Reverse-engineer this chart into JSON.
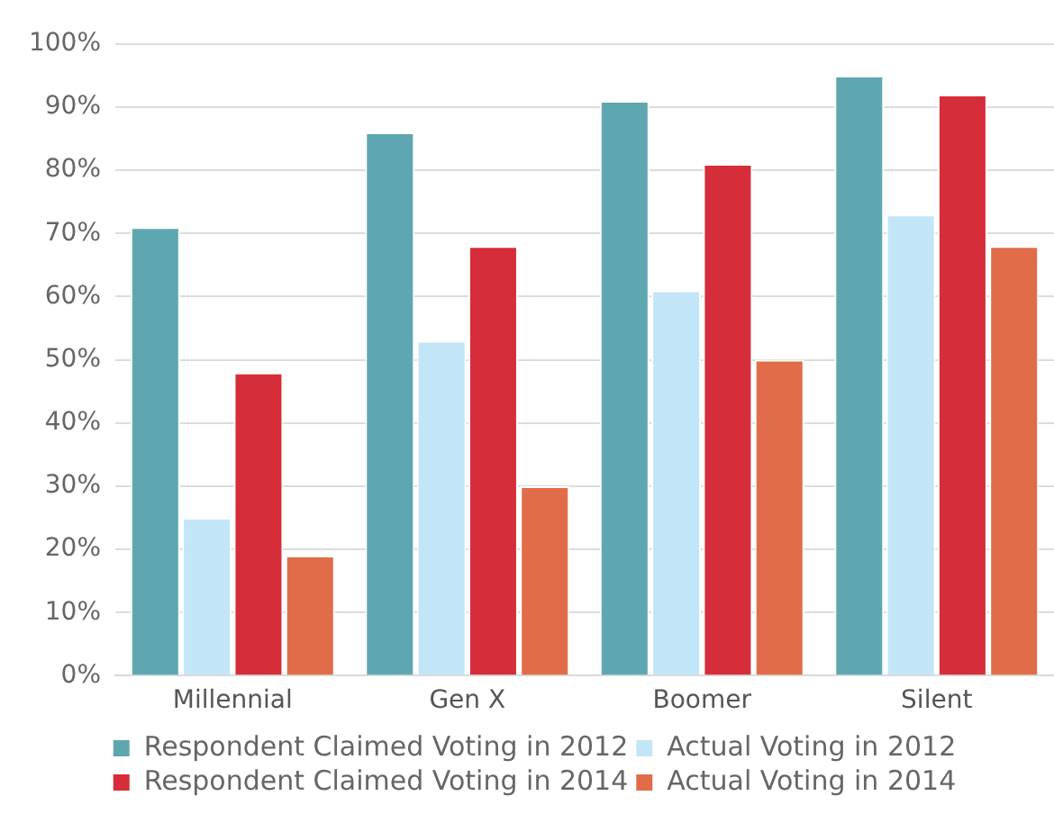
{
  "chart_data": {
    "type": "bar",
    "categories": [
      "Millennial",
      "Gen X",
      "Boomer",
      "Silent"
    ],
    "series": [
      {
        "name": "Respondent Claimed Voting in 2012",
        "color": "#5fa7b0",
        "values": [
          71,
          86,
          91,
          95
        ]
      },
      {
        "name": "Actual Voting in 2012",
        "color": "#c2e6f7",
        "values": [
          25,
          53,
          61,
          73
        ]
      },
      {
        "name": "Respondent Claimed Voting in 2014",
        "color": "#d52d39",
        "values": [
          48,
          68,
          81,
          92
        ]
      },
      {
        "name": "Actual Voting in 2014",
        "color": "#e06c49",
        "values": [
          19,
          30,
          50,
          68
        ]
      }
    ],
    "ylim": [
      0,
      100
    ],
    "yticks": [
      {
        "value": 0,
        "label": "0%"
      },
      {
        "value": 10,
        "label": "10%"
      },
      {
        "value": 20,
        "label": "20%"
      },
      {
        "value": 30,
        "label": "30%"
      },
      {
        "value": 40,
        "label": "40%"
      },
      {
        "value": 50,
        "label": "50%"
      },
      {
        "value": 60,
        "label": "60%"
      },
      {
        "value": 70,
        "label": "70%"
      },
      {
        "value": 80,
        "label": "80%"
      },
      {
        "value": 90,
        "label": "90%"
      },
      {
        "value": 100,
        "label": "100%"
      }
    ],
    "grid": "y",
    "legend": "bottom"
  }
}
